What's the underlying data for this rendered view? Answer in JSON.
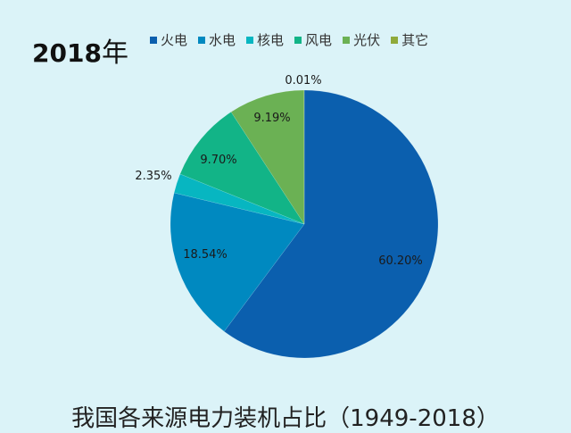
{
  "header": {
    "year_label": "2018",
    "year_suffix": "年"
  },
  "legend": [
    {
      "label": "火电",
      "color": "#0b5fae"
    },
    {
      "label": "水电",
      "color": "#0089c0"
    },
    {
      "label": "核电",
      "color": "#07b6c1"
    },
    {
      "label": "风电",
      "color": "#12b487"
    },
    {
      "label": "光伏",
      "color": "#6bb154"
    },
    {
      "label": "其它",
      "color": "#8faa3b"
    }
  ],
  "caption": "我国各来源电力装机占比（1949-2018）",
  "chart_data": {
    "type": "pie",
    "title": "2018年",
    "subtitle": "我国各来源电力装机占比（1949-2018）",
    "categories": [
      "火电",
      "水电",
      "核电",
      "风电",
      "光伏",
      "其它"
    ],
    "values": [
      60.2,
      18.54,
      2.35,
      9.7,
      9.19,
      0.01
    ],
    "labels": [
      "60.20%",
      "18.54%",
      "2.35%",
      "9.70%",
      "9.19%",
      "0.01%"
    ],
    "colors": [
      "#0b5fae",
      "#0089c0",
      "#07b6c1",
      "#12b487",
      "#6bb154",
      "#8faa3b"
    ],
    "legend_position": "top",
    "start_angle": "12 o'clock, clockwise"
  }
}
